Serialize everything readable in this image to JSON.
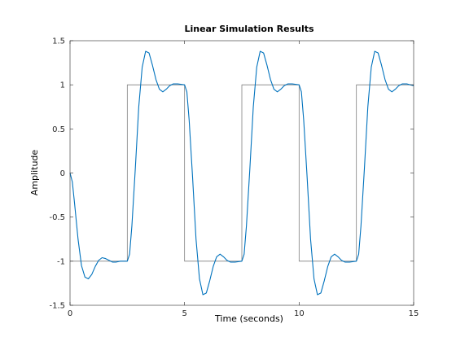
{
  "chart_data": {
    "type": "line",
    "title": "Linear Simulation Results",
    "xlabel": "Time (seconds)",
    "ylabel": "Amplitude",
    "xlim": [
      0,
      15
    ],
    "ylim": [
      -1.5,
      1.5
    ],
    "x_ticks": [
      0,
      5,
      10,
      15
    ],
    "x_tick_labels": [
      "0",
      "5",
      "10",
      "15"
    ],
    "y_ticks": [
      -1.5,
      -1,
      -0.5,
      0,
      0.5,
      1,
      1.5
    ],
    "y_tick_labels": [
      "-1.5",
      "-1",
      "-0.5",
      "0",
      "0.5",
      "1",
      "1.5"
    ],
    "grid": false,
    "legend": "none",
    "series": [
      {
        "role": "input",
        "color": "#808080",
        "x": [
          0,
          2.5,
          2.5,
          5,
          5,
          7.5,
          7.5,
          10,
          10,
          12.5,
          12.5,
          15
        ],
        "y": [
          -1,
          -1,
          1,
          1,
          -1,
          -1,
          1,
          1,
          -1,
          -1,
          1,
          1
        ]
      },
      {
        "role": "response",
        "color": "#0072BD",
        "x": [
          0,
          0.1,
          0.2,
          0.35,
          0.5,
          0.65,
          0.8,
          0.95,
          1.1,
          1.25,
          1.4,
          1.55,
          1.7,
          1.85,
          2.0,
          2.2,
          2.5,
          2.6,
          2.7,
          2.85,
          3.0,
          3.15,
          3.3,
          3.45,
          3.6,
          3.75,
          3.9,
          4.05,
          4.2,
          4.35,
          4.5,
          4.7,
          5.0,
          5.1,
          5.2,
          5.35,
          5.5,
          5.65,
          5.8,
          5.95,
          6.1,
          6.25,
          6.4,
          6.55,
          6.7,
          6.85,
          7.0,
          7.2,
          7.5,
          7.6,
          7.7,
          7.85,
          8.0,
          8.15,
          8.3,
          8.45,
          8.6,
          8.75,
          8.9,
          9.05,
          9.2,
          9.35,
          9.5,
          9.7,
          10.0,
          10.1,
          10.2,
          10.35,
          10.5,
          10.65,
          10.8,
          10.95,
          11.1,
          11.25,
          11.4,
          11.55,
          11.7,
          11.85,
          12.0,
          12.2,
          12.5,
          12.6,
          12.7,
          12.85,
          13.0,
          13.15,
          13.3,
          13.45,
          13.6,
          13.75,
          13.9,
          14.05,
          14.2,
          14.35,
          14.5,
          14.7,
          15.0
        ],
        "y": [
          0.0,
          -0.1,
          -0.35,
          -0.75,
          -1.05,
          -1.18,
          -1.2,
          -1.15,
          -1.06,
          -0.99,
          -0.96,
          -0.97,
          -0.99,
          -1.01,
          -1.01,
          -1.0,
          -1.0,
          -0.92,
          -0.6,
          0.05,
          0.75,
          1.2,
          1.38,
          1.36,
          1.22,
          1.06,
          0.95,
          0.92,
          0.95,
          0.99,
          1.01,
          1.01,
          1.0,
          0.92,
          0.6,
          -0.05,
          -0.75,
          -1.2,
          -1.38,
          -1.36,
          -1.22,
          -1.06,
          -0.95,
          -0.92,
          -0.95,
          -0.99,
          -1.01,
          -1.01,
          -1.0,
          -0.92,
          -0.6,
          0.05,
          0.75,
          1.2,
          1.38,
          1.36,
          1.22,
          1.06,
          0.95,
          0.92,
          0.95,
          0.99,
          1.01,
          1.01,
          1.0,
          0.92,
          0.6,
          -0.05,
          -0.75,
          -1.2,
          -1.38,
          -1.36,
          -1.22,
          -1.06,
          -0.95,
          -0.92,
          -0.95,
          -0.99,
          -1.01,
          -1.01,
          -1.0,
          -0.92,
          -0.6,
          0.05,
          0.75,
          1.2,
          1.38,
          1.36,
          1.22,
          1.06,
          0.95,
          0.92,
          0.95,
          0.99,
          1.01,
          1.01,
          0.99
        ]
      }
    ]
  }
}
